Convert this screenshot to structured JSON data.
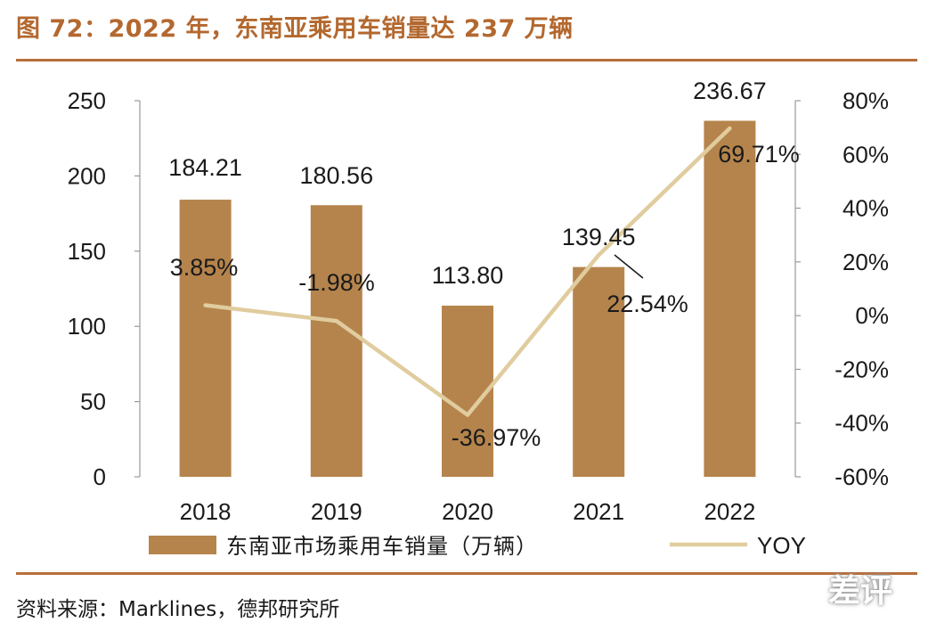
{
  "header": {
    "title": "图 72：2022 年，东南亚乘用车销量达 237 万辆"
  },
  "footer": {
    "source": "资料来源：Marklines，德邦研究所",
    "watermark": "差评"
  },
  "colors": {
    "bar": "#b5844c",
    "line": "#e0cc9e",
    "accent": "#b3682f",
    "rule": "#b76e3b"
  },
  "chart_data": {
    "type": "bar",
    "categories": [
      "2018",
      "2019",
      "2020",
      "2021",
      "2022"
    ],
    "series": [
      {
        "name": "东南亚市场乘用车销量（万辆）",
        "type": "bar",
        "axis": "left",
        "values": [
          184.21,
          180.56,
          113.8,
          139.45,
          236.67
        ],
        "labels": [
          "184.21",
          "180.56",
          "113.80",
          "139.45",
          "236.67"
        ]
      },
      {
        "name": "YOY",
        "type": "line",
        "axis": "right",
        "values": [
          3.85,
          -1.98,
          -36.97,
          22.54,
          69.71
        ],
        "labels": [
          "3.85%",
          "-1.98%",
          "-36.97%",
          "22.54%",
          "69.71%"
        ]
      }
    ],
    "y_left": {
      "min": 0,
      "max": 250,
      "ticks": [
        "0",
        "50",
        "100",
        "150",
        "200",
        "250"
      ]
    },
    "y_right": {
      "min": -60,
      "max": 80,
      "ticks": [
        "-60%",
        "-40%",
        "-20%",
        "0%",
        "20%",
        "40%",
        "60%",
        "80%"
      ]
    },
    "legend_position": "bottom",
    "grid": false
  }
}
